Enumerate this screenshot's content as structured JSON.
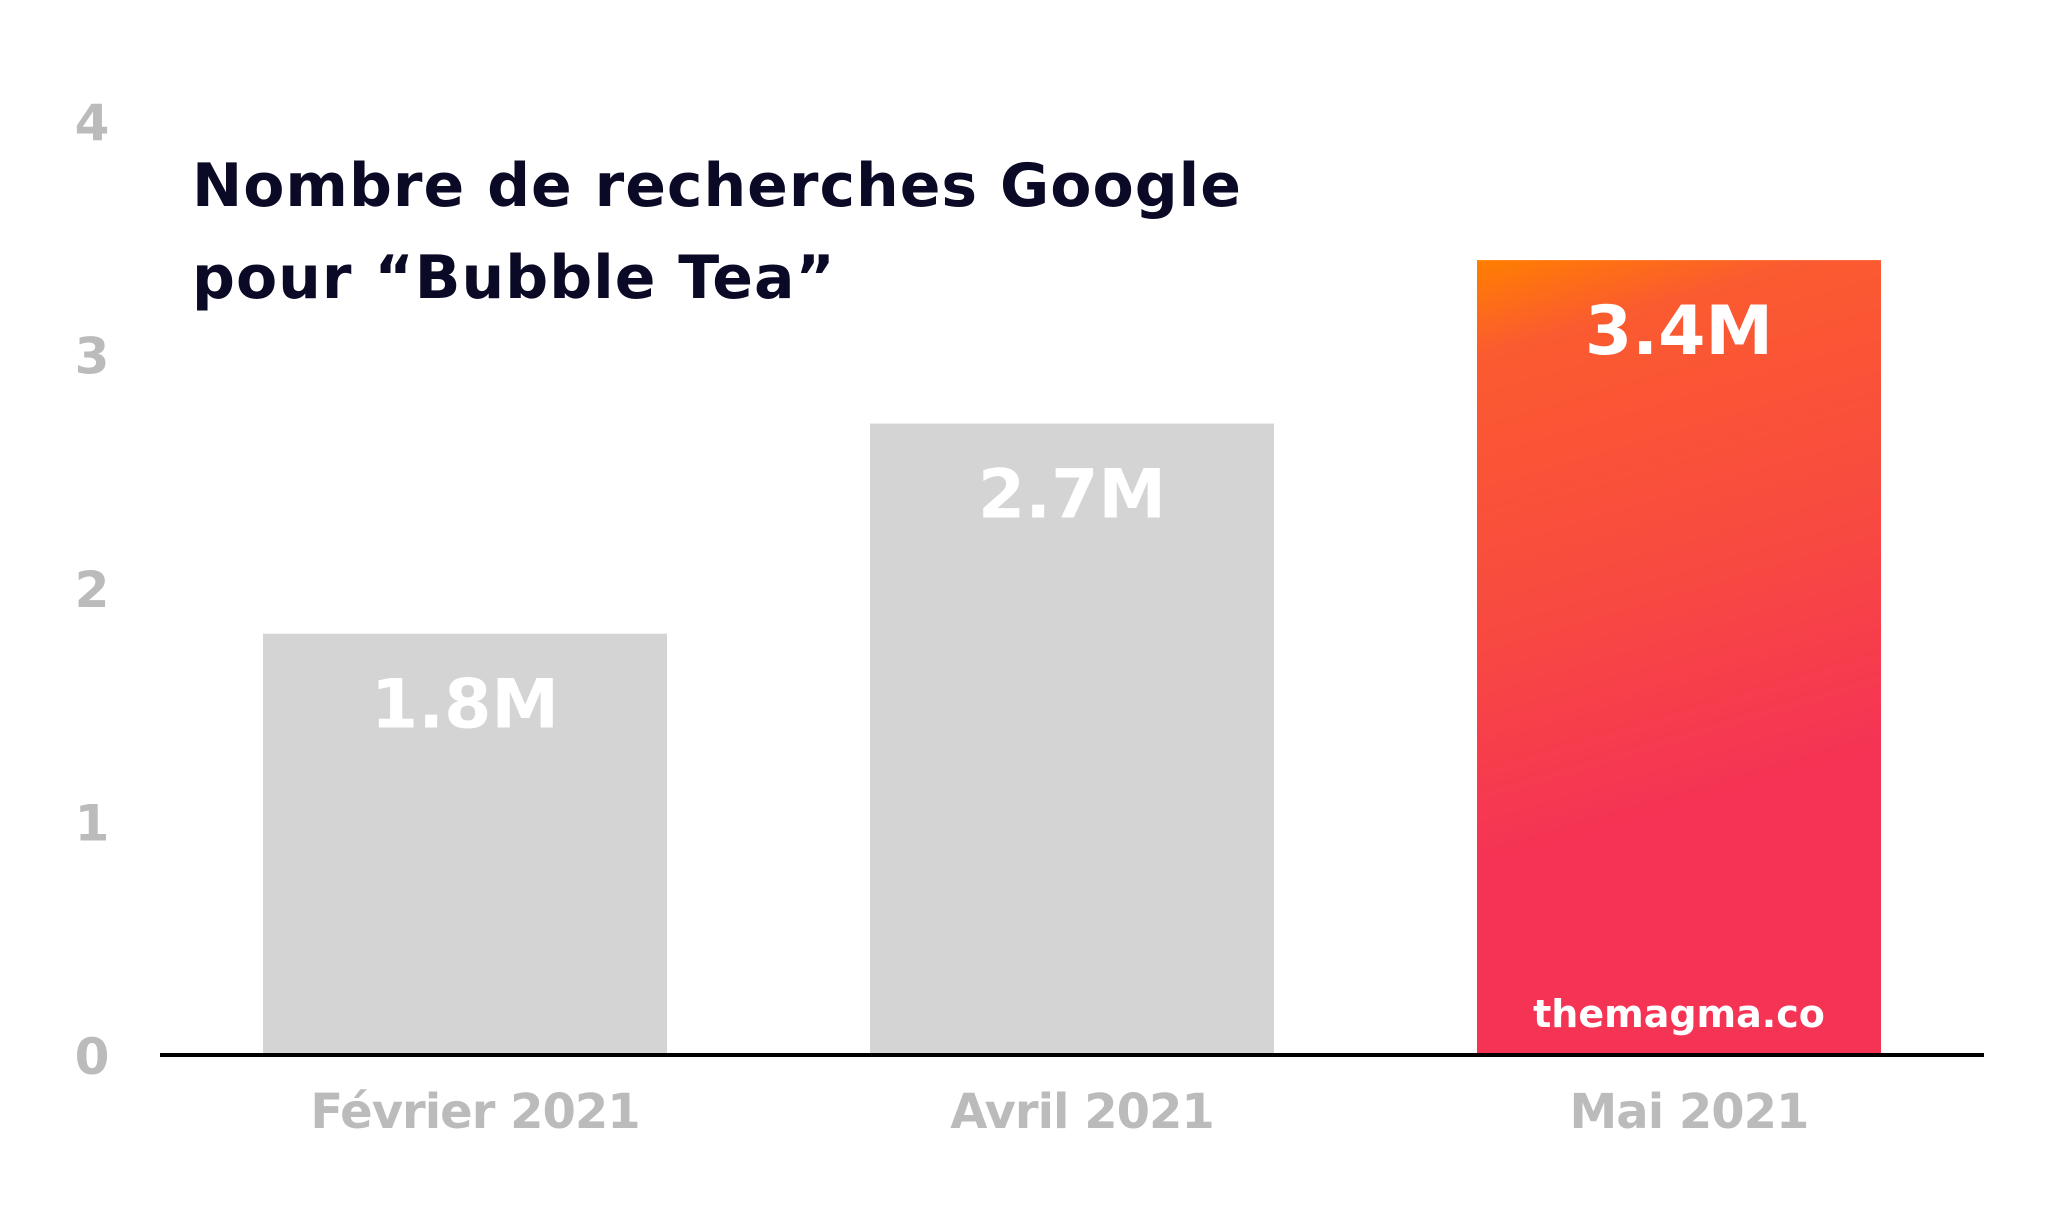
{
  "chart_data": {
    "type": "bar",
    "title_lines": [
      "Nombre de recherches Google",
      "pour “Bubble Tea”"
    ],
    "categories": [
      "Février 2021",
      "Avril 2021",
      "Mai 2021"
    ],
    "values": [
      1.8,
      2.7,
      3.4
    ],
    "data_labels": [
      "1.8M",
      "2.7M",
      "3.4M"
    ],
    "ylabel": "",
    "xlabel": "",
    "ylim": [
      0,
      4
    ],
    "yticks": [
      "0",
      "1",
      "2",
      "3",
      "4"
    ],
    "grid": false,
    "watermark": "themagma.co",
    "colors": {
      "bar_default": "#d4d4d4",
      "highlight_top": "#ff7f00",
      "highlight_mid": "#f84a40",
      "highlight_bottom": "#f53355",
      "tick_label": "#bbbbbb",
      "title": "#0a0a26",
      "axis": "#000000"
    },
    "highlight_index": 2
  }
}
